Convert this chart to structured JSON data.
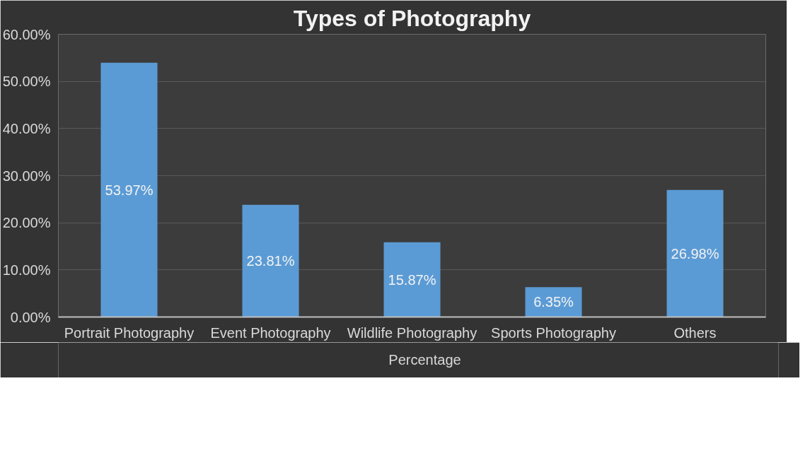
{
  "chart_data": {
    "type": "bar",
    "title": "Types of Photography",
    "categories": [
      "Portrait Photography",
      "Event Photography",
      "Wildlife Photography",
      "Sports Photography",
      "Others"
    ],
    "series": [
      {
        "name": "Percentage",
        "color": "#5b9bd5",
        "values": [
          53.97,
          23.81,
          15.87,
          6.35,
          26.98
        ],
        "value_labels": [
          "53.97%",
          "23.81%",
          "15.87%",
          "6.35%",
          "26.98%"
        ]
      }
    ],
    "ylim": [
      0,
      60
    ],
    "yticks": [
      {
        "value": 0,
        "label": "0.00%"
      },
      {
        "value": 10,
        "label": "10.00%"
      },
      {
        "value": 20,
        "label": "20.00%"
      },
      {
        "value": 30,
        "label": "30.00%"
      },
      {
        "value": 40,
        "label": "40.00%"
      },
      {
        "value": 50,
        "label": "50.00%"
      },
      {
        "value": 60,
        "label": "60.00%"
      }
    ],
    "grid": "y",
    "legend": "bottom"
  }
}
